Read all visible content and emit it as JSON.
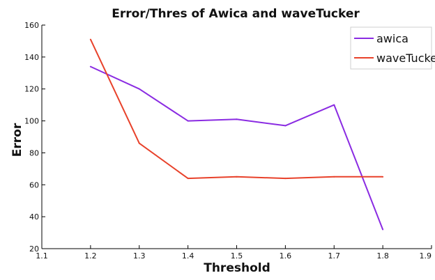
{
  "chart_data": {
    "type": "line",
    "title": "Error/Thres of Awica and waveTucker",
    "xlabel": "Threshold",
    "ylabel": "Error",
    "xlim": [
      1.1,
      1.9
    ],
    "ylim": [
      20,
      160
    ],
    "x_ticks": [
      "1.1",
      "1.2",
      "1.3",
      "1.4",
      "1.5",
      "1.6",
      "1.7",
      "1.8",
      "1.9"
    ],
    "y_ticks": [
      "20",
      "40",
      "60",
      "80",
      "100",
      "120",
      "140",
      "160"
    ],
    "x": [
      1.2,
      1.3,
      1.4,
      1.5,
      1.6,
      1.7,
      1.8
    ],
    "series": [
      {
        "name": "awica",
        "color": "#8a2be2",
        "values": [
          134,
          120,
          100,
          101,
          97,
          110,
          32
        ]
      },
      {
        "name": "waveTucker",
        "color": "#e8412a",
        "values": [
          151,
          86,
          64,
          65,
          64,
          65,
          65
        ]
      }
    ],
    "legend_position": "top-right",
    "grid": false
  }
}
